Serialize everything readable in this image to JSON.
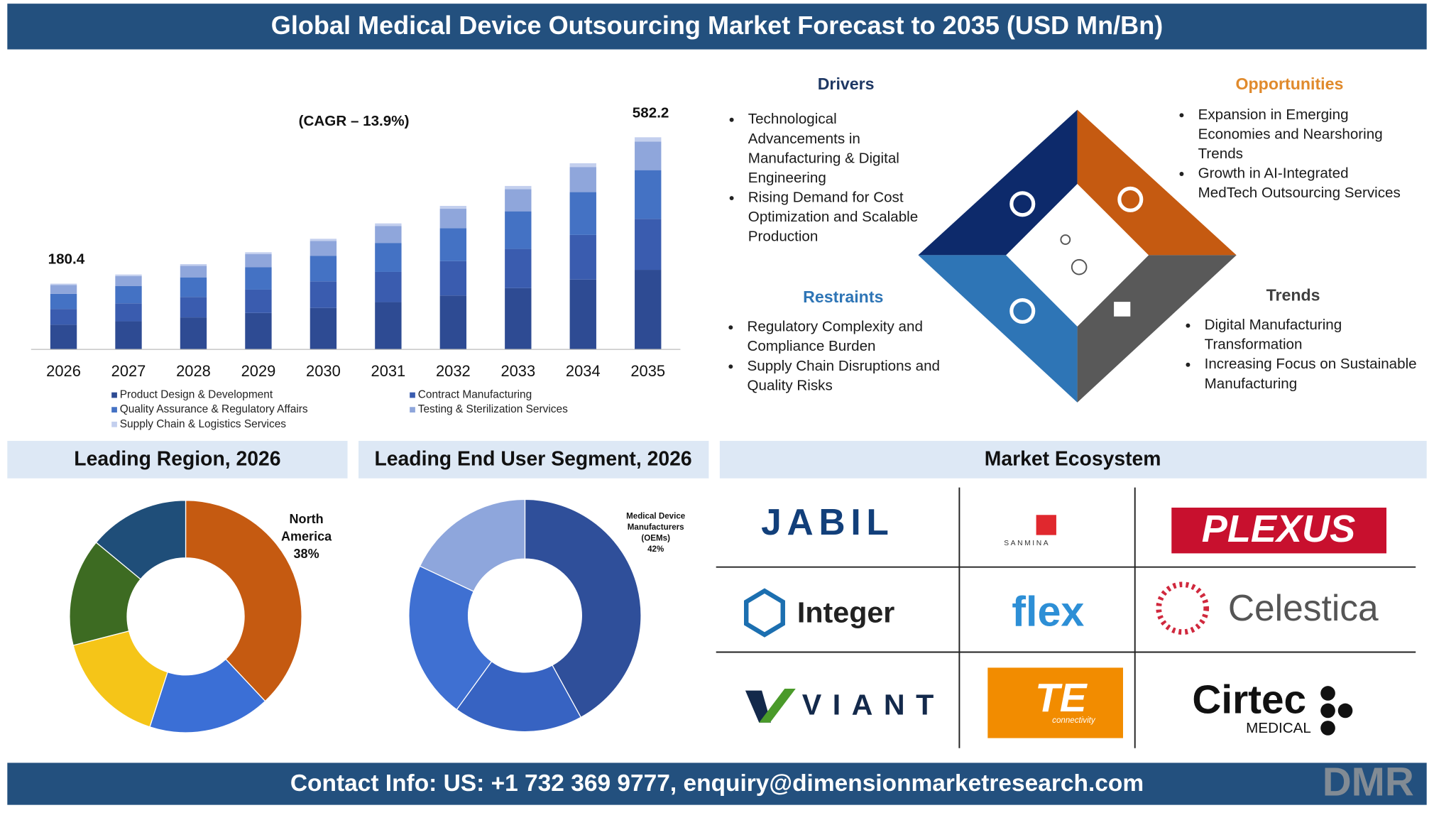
{
  "header": {
    "title": "Global Medical Device Outsourcing Market Forecast to 2035 (USD Mn/Bn)"
  },
  "chart_data": [
    {
      "type": "bar",
      "stacked": true,
      "grid": false,
      "categories": [
        "2026",
        "2027",
        "2028",
        "2029",
        "2030",
        "2031",
        "2032",
        "2033",
        "2034",
        "2035"
      ],
      "ylim": [
        0,
        600
      ],
      "series": [
        {
          "name": "Product Design & Development",
          "color": "#2e4b93",
          "values": [
            67.7,
            77.1,
            87.7,
            100.0,
            113.8,
            129.7,
            147.7,
            168.1,
            191.6,
            218.4
          ]
        },
        {
          "name": "Contract Manufacturing",
          "color": "#3a5caf",
          "values": [
            43.3,
            49.3,
            56.2,
            64.0,
            72.9,
            83.0,
            94.5,
            107.7,
            122.6,
            139.7
          ]
        },
        {
          "name": "Quality Assurance & Regulatory Affairs",
          "color": "#4472c4",
          "values": [
            41.5,
            47.3,
            53.8,
            61.3,
            69.8,
            79.5,
            90.6,
            103.2,
            117.5,
            133.9
          ]
        },
        {
          "name": "Testing & Sterilization Services",
          "color": "#8fa6db",
          "values": [
            24.3,
            27.7,
            31.6,
            36.0,
            41.0,
            46.7,
            53.2,
            60.6,
            69.0,
            78.6
          ]
        },
        {
          "name": "Supply Chain & Logistics Services",
          "color": "#c3cfee",
          "values": [
            3.6,
            4.1,
            4.7,
            5.3,
            6.1,
            6.9,
            7.9,
            9.0,
            10.2,
            11.6
          ]
        }
      ],
      "annotations": [
        {
          "category": "2026",
          "label": "180.4"
        },
        {
          "category": "2035",
          "label": "582.2"
        },
        {
          "label": "(CAGR – 13.9%)"
        }
      ]
    },
    {
      "type": "pie",
      "donut": true,
      "title": "Leading Region, 2026",
      "categories": [
        "North America",
        null,
        null,
        null,
        null
      ],
      "values": [
        38,
        17,
        16,
        15,
        14
      ],
      "value_labels": [
        "38%",
        null,
        null,
        null,
        null
      ],
      "colors": [
        "#c55a11",
        "#3b6fd6",
        "#f5c518",
        "#3d6b22",
        "#1f4e79"
      ]
    },
    {
      "type": "pie",
      "donut": true,
      "title": "Leading End User Segment, 2026",
      "categories": [
        "Medical Device Manufacturers (OEMs)",
        null,
        null,
        null
      ],
      "values": [
        42,
        18,
        22,
        18
      ],
      "value_labels": [
        "42%",
        null,
        null,
        null
      ],
      "colors": [
        "#2f4f9a",
        "#3763c2",
        "#3f70d2",
        "#8ea6dc"
      ]
    }
  ],
  "sections": {
    "drivers": {
      "title": "Drivers",
      "bullets": [
        [
          "Technological",
          "Advancements in",
          "Manufacturing & Digital",
          "Engineering"
        ],
        [
          "Rising Demand for Cost",
          "Optimization and Scalable",
          "Production"
        ]
      ]
    },
    "opportunities": {
      "title": "Opportunities",
      "bullets": [
        [
          "Expansion in Emerging",
          "Economies and Nearshoring",
          "Trends"
        ],
        [
          "Growth in AI-Integrated",
          "MedTech Outsourcing Services"
        ]
      ]
    },
    "restraints": {
      "title": "Restraints",
      "bullets": [
        [
          "Regulatory Complexity and",
          "Compliance Burden"
        ],
        [
          "Supply Chain Disruptions and",
          "Quality Risks"
        ]
      ]
    },
    "trends": {
      "title": "Trends",
      "bullets": [
        [
          "Digital Manufacturing",
          "Transformation"
        ],
        [
          "Increasing Focus on Sustainable",
          "Manufacturing"
        ]
      ]
    }
  },
  "ecosystem": {
    "title": "Market Ecosystem",
    "companies": [
      {
        "name": "JABIL"
      },
      {
        "name": "SANMINA"
      },
      {
        "name": "PLEXUS"
      },
      {
        "name": "Integer"
      },
      {
        "name": "flex"
      },
      {
        "name": "Celestica"
      },
      {
        "name": "VIANT"
      },
      {
        "name": "TE",
        "sub": "connectivity"
      },
      {
        "name": "Cirtec",
        "sub": "MEDICAL"
      }
    ]
  },
  "footer": {
    "contact": "Contact Info: US: +1 732 369 9777, enquiry@dimensionmarketresearch.com",
    "logo": "DMR"
  }
}
